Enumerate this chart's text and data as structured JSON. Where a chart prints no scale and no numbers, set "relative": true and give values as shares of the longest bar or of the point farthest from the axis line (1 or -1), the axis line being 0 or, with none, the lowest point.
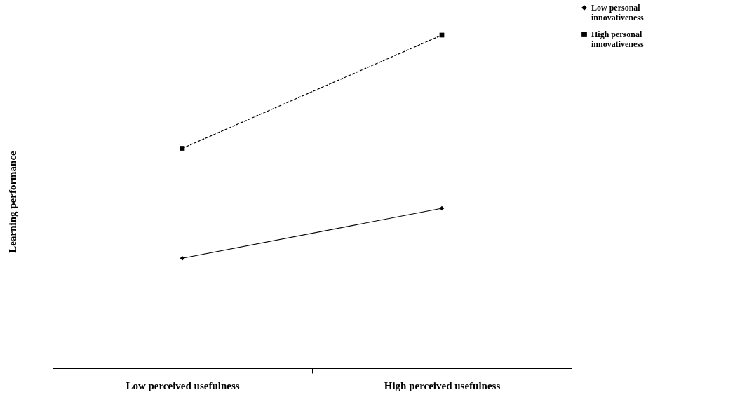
{
  "chart_data": {
    "type": "line",
    "relative": true,
    "xlabel": null,
    "ylabel": "Learning performance",
    "categories": [
      "Low perceived usefulness",
      "High perceived usefulness"
    ],
    "series": [
      {
        "name": "Low personal innovativeness",
        "color": "#000000",
        "marker": "diamond",
        "line_style": "solid",
        "values": [
          0.33,
          0.48
        ]
      },
      {
        "name": "High personal innovativeness",
        "color": "#000000",
        "marker": "square",
        "line_style": "dashed",
        "values": [
          0.66,
          1
        ]
      }
    ],
    "legend": "right",
    "grid": false
  }
}
